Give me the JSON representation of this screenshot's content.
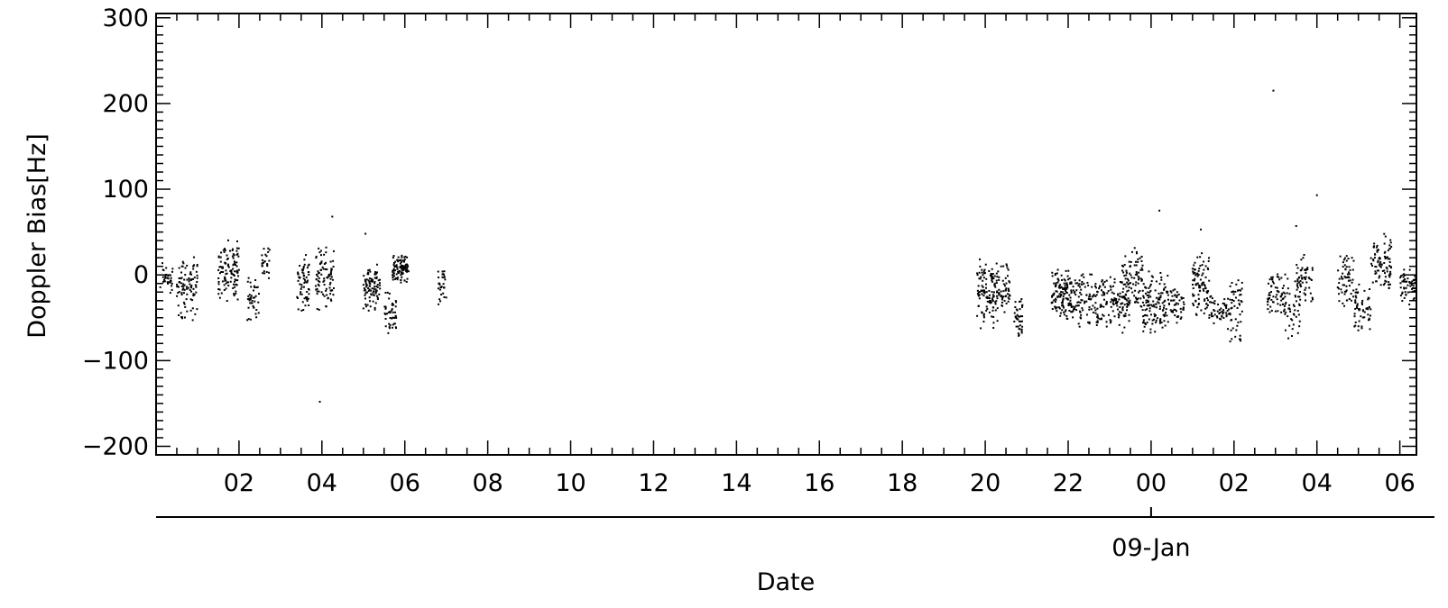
{
  "chart_data": {
    "type": "scatter",
    "xlabel": "Date",
    "ylabel": "Doppler Bias[Hz]",
    "ylim": [
      -210,
      305
    ],
    "xlim_hours": [
      0,
      30.4
    ],
    "date_label": "09-Jan",
    "date_label_hour": 24,
    "x_ticks": [
      {
        "hour": 2,
        "label": "02"
      },
      {
        "hour": 4,
        "label": "04"
      },
      {
        "hour": 6,
        "label": "06"
      },
      {
        "hour": 8,
        "label": "08"
      },
      {
        "hour": 10,
        "label": "10"
      },
      {
        "hour": 12,
        "label": "12"
      },
      {
        "hour": 14,
        "label": "14"
      },
      {
        "hour": 16,
        "label": "16"
      },
      {
        "hour": 18,
        "label": "18"
      },
      {
        "hour": 20,
        "label": "20"
      },
      {
        "hour": 22,
        "label": "22"
      },
      {
        "hour": 24,
        "label": "00"
      },
      {
        "hour": 26,
        "label": "02"
      },
      {
        "hour": 28,
        "label": "04"
      },
      {
        "hour": 30,
        "label": "06"
      }
    ],
    "y_ticks": [
      {
        "value": 300,
        "label": "300"
      },
      {
        "value": 200,
        "label": "200"
      },
      {
        "value": 100,
        "label": "100"
      },
      {
        "value": 0,
        "label": "0"
      },
      {
        "value": -100,
        "label": "−100"
      },
      {
        "value": -200,
        "label": "−200"
      }
    ],
    "clusters": [
      {
        "t0": 0.1,
        "t1": 0.4,
        "lo": -30,
        "hi": 25,
        "n": 30
      },
      {
        "t0": 0.5,
        "t1": 1.0,
        "lo": -60,
        "hi": 30,
        "n": 95
      },
      {
        "t0": 1.5,
        "t1": 2.0,
        "lo": -35,
        "hi": 42,
        "n": 110
      },
      {
        "t0": 2.2,
        "t1": 2.5,
        "lo": -55,
        "hi": 5,
        "n": 40
      },
      {
        "t0": 2.55,
        "t1": 2.75,
        "lo": -5,
        "hi": 35,
        "n": 25
      },
      {
        "t0": 3.4,
        "t1": 3.7,
        "lo": -50,
        "hi": 30,
        "n": 60
      },
      {
        "t0": 3.85,
        "t1": 4.3,
        "lo": -45,
        "hi": 40,
        "n": 85
      },
      {
        "t0": 5.0,
        "t1": 5.4,
        "lo": -45,
        "hi": 15,
        "n": 90
      },
      {
        "t0": 5.5,
        "t1": 5.8,
        "lo": -72,
        "hi": -15,
        "n": 45
      },
      {
        "t0": 5.7,
        "t1": 6.1,
        "lo": -10,
        "hi": 25,
        "n": 100
      },
      {
        "t0": 6.8,
        "t1": 7.0,
        "lo": -40,
        "hi": 10,
        "n": 30
      },
      {
        "t0": 19.8,
        "t1": 20.3,
        "lo": -65,
        "hi": 20,
        "n": 120
      },
      {
        "t0": 20.3,
        "t1": 20.6,
        "lo": -50,
        "hi": 15,
        "n": 50
      },
      {
        "t0": 20.7,
        "t1": 20.9,
        "lo": -78,
        "hi": -25,
        "n": 40
      },
      {
        "t0": 21.6,
        "t1": 22.2,
        "lo": -55,
        "hi": 10,
        "n": 150
      },
      {
        "t0": 22.2,
        "t1": 22.9,
        "lo": -65,
        "hi": 5,
        "n": 110
      },
      {
        "t0": 22.9,
        "t1": 23.5,
        "lo": -72,
        "hi": 10,
        "n": 90
      },
      {
        "t0": 23.3,
        "t1": 23.8,
        "lo": -45,
        "hi": 35,
        "n": 90
      },
      {
        "t0": 23.8,
        "t1": 24.4,
        "lo": -75,
        "hi": 10,
        "n": 120
      },
      {
        "t0": 24.4,
        "t1": 24.8,
        "lo": -60,
        "hi": -10,
        "n": 50
      },
      {
        "t0": 25.0,
        "t1": 25.4,
        "lo": -55,
        "hi": 30,
        "n": 90
      },
      {
        "t0": 25.4,
        "t1": 25.9,
        "lo": -65,
        "hi": -20,
        "n": 50
      },
      {
        "t0": 25.9,
        "t1": 26.2,
        "lo": -88,
        "hi": 10,
        "n": 50
      },
      {
        "t0": 26.8,
        "t1": 27.2,
        "lo": -55,
        "hi": 10,
        "n": 60
      },
      {
        "t0": 27.2,
        "t1": 27.6,
        "lo": -82,
        "hi": 5,
        "n": 50
      },
      {
        "t0": 27.5,
        "t1": 27.9,
        "lo": -40,
        "hi": 30,
        "n": 55
      },
      {
        "t0": 28.5,
        "t1": 28.9,
        "lo": -40,
        "hi": 25,
        "n": 60
      },
      {
        "t0": 28.9,
        "t1": 29.3,
        "lo": -70,
        "hi": -10,
        "n": 55
      },
      {
        "t0": 29.3,
        "t1": 29.8,
        "lo": -20,
        "hi": 50,
        "n": 90
      },
      {
        "t0": 30.0,
        "t1": 30.4,
        "lo": -35,
        "hi": 10,
        "n": 50
      }
    ],
    "outliers": [
      {
        "t": 3.95,
        "v": -148
      },
      {
        "t": 4.25,
        "v": 68
      },
      {
        "t": 5.05,
        "v": 48
      },
      {
        "t": 24.2,
        "v": 75
      },
      {
        "t": 26.95,
        "v": 215
      },
      {
        "t": 27.5,
        "v": 57
      },
      {
        "t": 28.0,
        "v": 93
      },
      {
        "t": 25.2,
        "v": 53
      }
    ]
  }
}
